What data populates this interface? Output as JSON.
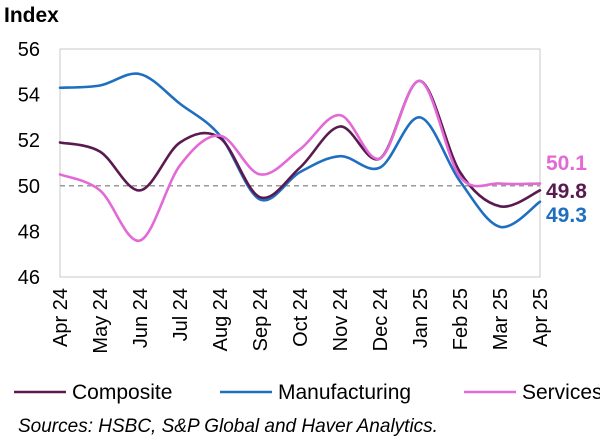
{
  "chart_data": {
    "type": "line",
    "title": "Index",
    "categories": [
      "Apr 24",
      "May 24",
      "Jun 24",
      "Jul 24",
      "Aug 24",
      "Sep 24",
      "Oct 24",
      "Nov 24",
      "Dec 24",
      "Jan 25",
      "Feb 25",
      "Mar 25",
      "Apr 25"
    ],
    "ylim": [
      46,
      56
    ],
    "yticks": [
      46,
      48,
      50,
      52,
      54,
      56
    ],
    "reference_line": 50,
    "series": [
      {
        "name": "Composite",
        "color": "#5b1a4f",
        "values": [
          51.9,
          51.5,
          49.8,
          51.9,
          52.1,
          49.5,
          50.8,
          52.6,
          51.2,
          54.6,
          50.6,
          49.1,
          49.8
        ],
        "end_label": "49.8"
      },
      {
        "name": "Manufacturing",
        "color": "#1f6fc1",
        "values": [
          54.3,
          54.4,
          54.9,
          53.6,
          52.2,
          49.4,
          50.6,
          51.3,
          50.8,
          53.0,
          50.2,
          48.2,
          49.3
        ],
        "end_label": "49.3"
      },
      {
        "name": "Services",
        "color": "#e36ad6",
        "values": [
          50.5,
          49.8,
          47.6,
          50.9,
          52.2,
          50.5,
          51.6,
          53.1,
          51.2,
          54.6,
          50.4,
          50.1,
          50.1
        ],
        "end_label": "50.1"
      }
    ],
    "legend": [
      "Composite",
      "Manufacturing",
      "Services"
    ],
    "source": "Sources: HSBC, S&P Global and Haver Analytics."
  }
}
